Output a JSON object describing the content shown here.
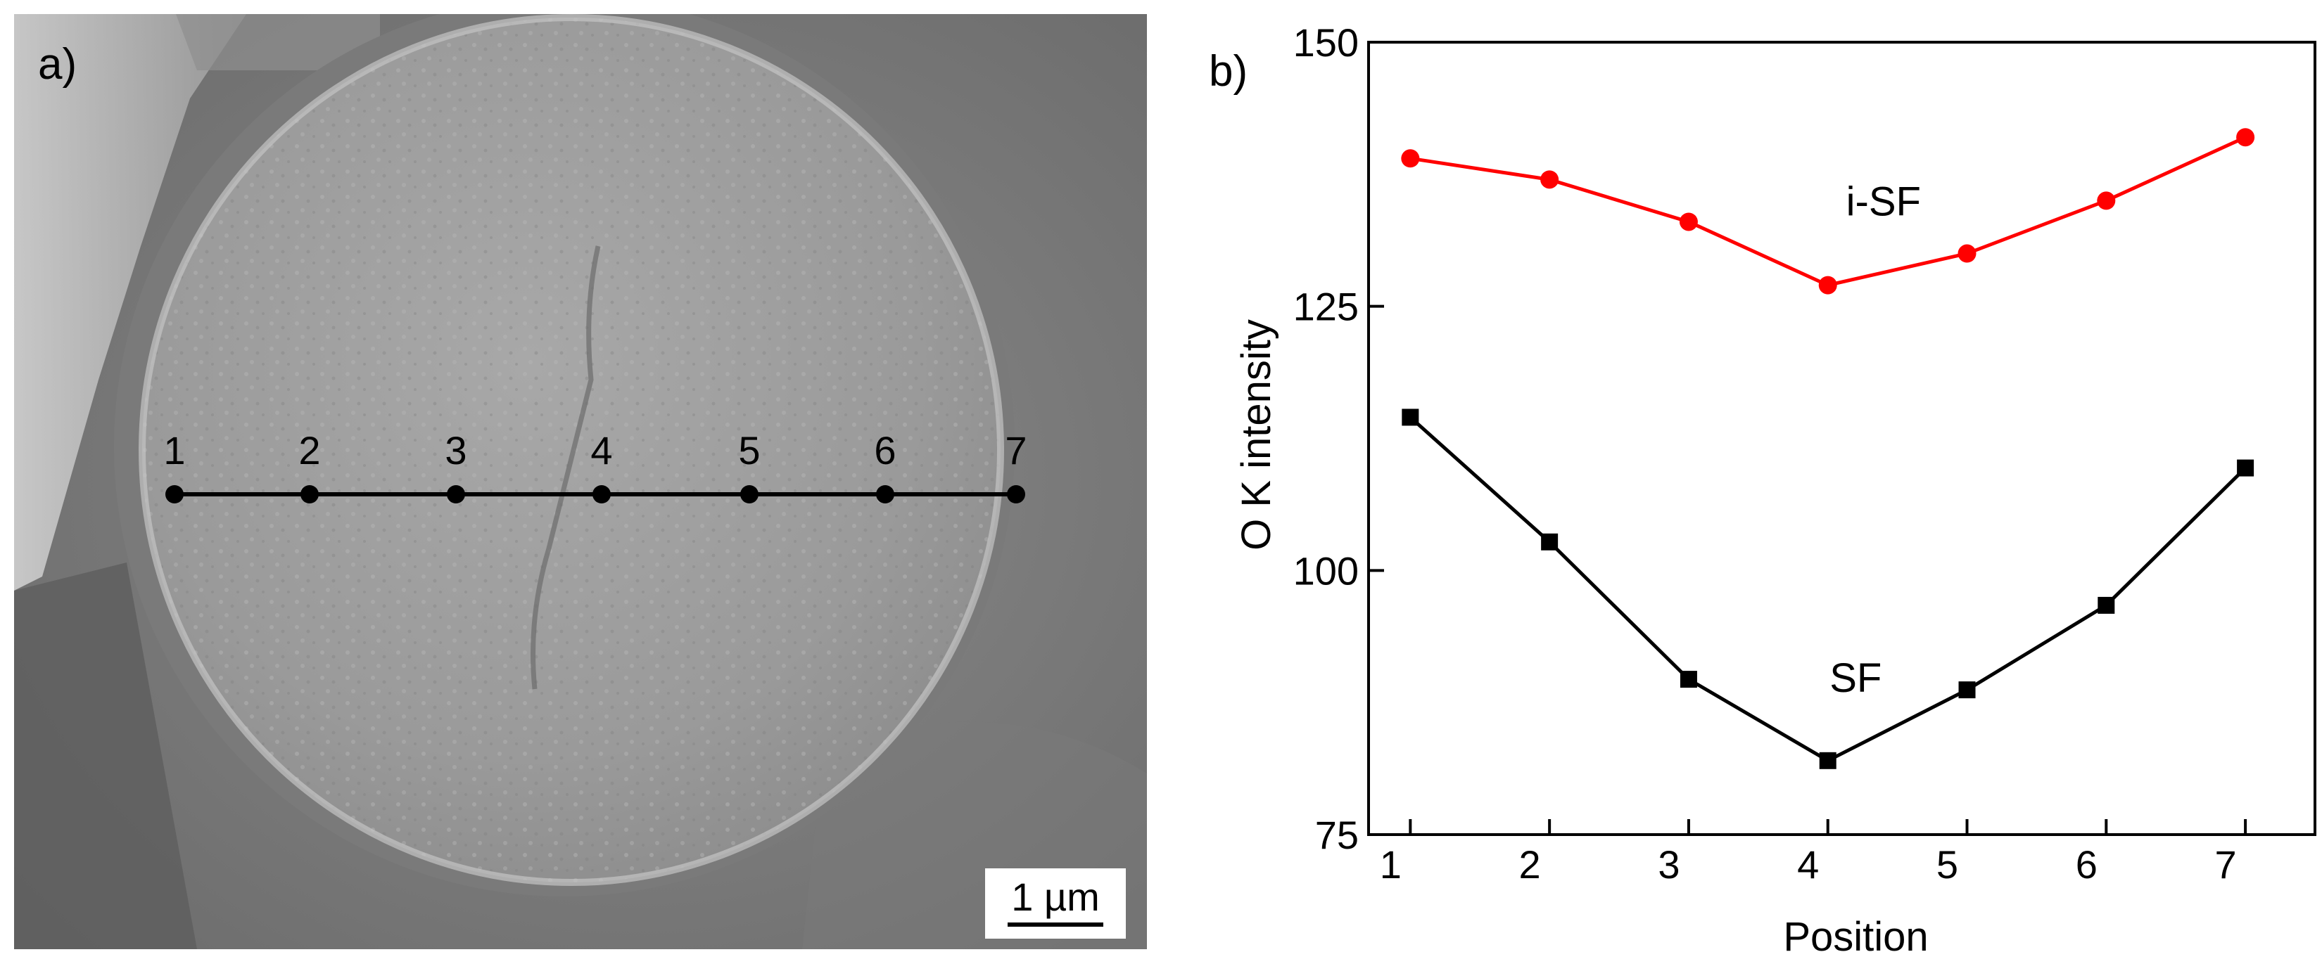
{
  "panel_a": {
    "label": "a)",
    "scale_bar_label": "1 µm",
    "positions": [
      "1",
      "2",
      "3",
      "4",
      "5",
      "6",
      "7"
    ]
  },
  "panel_b": {
    "label": "b)"
  },
  "chart_data": {
    "type": "line",
    "title": "",
    "xlabel": "Position",
    "ylabel": "O K intensity",
    "x": [
      1,
      2,
      3,
      4,
      5,
      6,
      7
    ],
    "xlim": [
      0.7,
      7.5
    ],
    "ylim": [
      75,
      150
    ],
    "yticks": [
      75,
      100,
      125,
      150
    ],
    "xticks": [
      1,
      2,
      3,
      4,
      5,
      6,
      7
    ],
    "grid": false,
    "series": [
      {
        "name": "i-SF",
        "color": "#ff0000",
        "marker": "circle",
        "values": [
          139,
          137,
          133,
          127,
          130,
          135,
          141
        ]
      },
      {
        "name": "SF",
        "color": "#000000",
        "marker": "square",
        "values": [
          114.5,
          102.7,
          89.7,
          82.0,
          88.7,
          96.7,
          109.7
        ]
      }
    ]
  }
}
